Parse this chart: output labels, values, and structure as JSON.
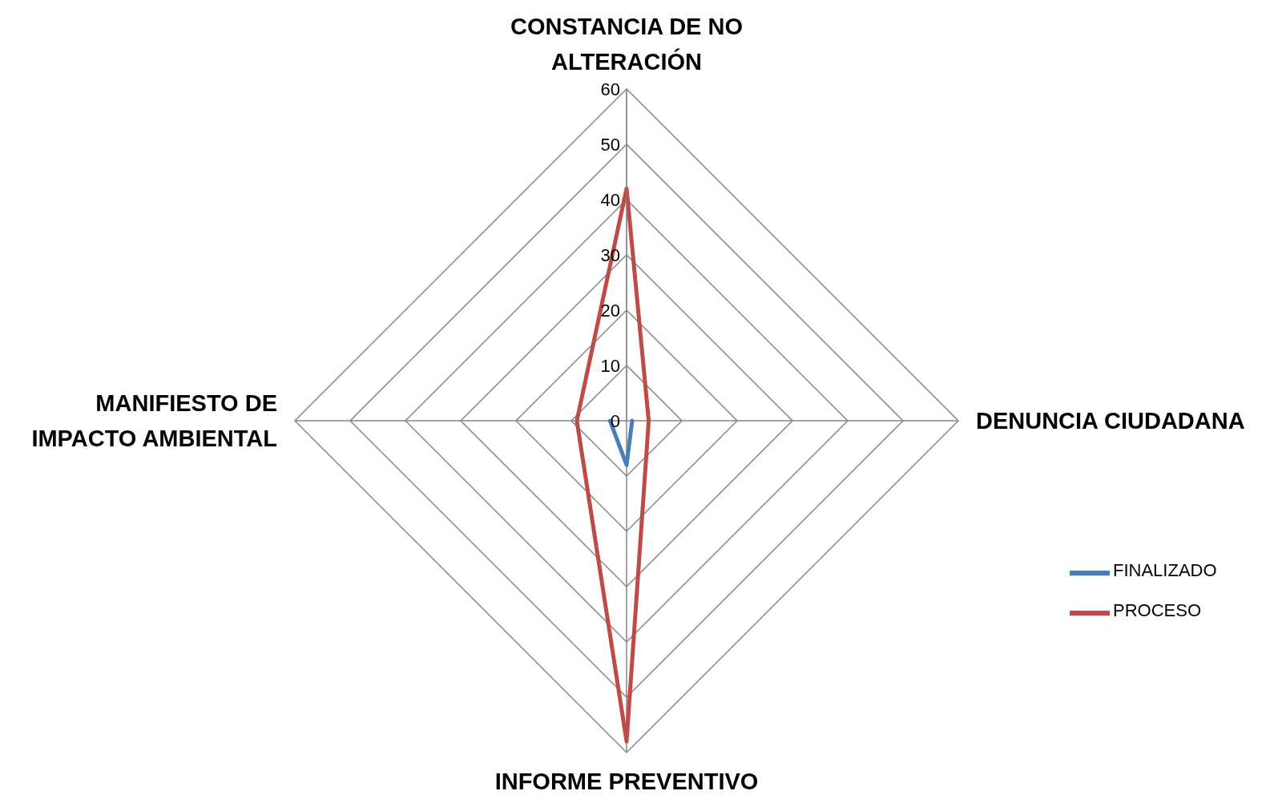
{
  "chart_data": {
    "type": "radar",
    "categories": [
      "CONSTANCIA DE NO ALTERACIÓN",
      "DENUNCIA CIUDADANA",
      "INFORME PREVENTIVO",
      "MANIFIESTO DE IMPACTO AMBIENTAL"
    ],
    "series": [
      {
        "name": "FINALIZADO",
        "color": "#4a7ebb",
        "values": [
          null,
          1,
          8,
          3
        ]
      },
      {
        "name": "PROCESO",
        "color": "#be4b48",
        "values": [
          42,
          4,
          58,
          9
        ]
      }
    ],
    "ylim": [
      0,
      60
    ],
    "yticks": [
      0,
      10,
      20,
      30,
      40,
      50,
      60
    ],
    "grid": true,
    "legend": "right",
    "marker": "none",
    "line_style": "solid"
  }
}
